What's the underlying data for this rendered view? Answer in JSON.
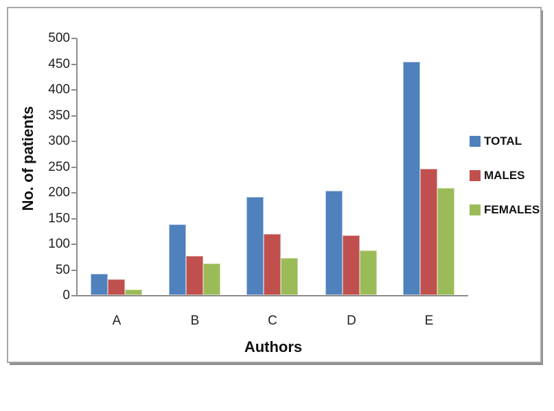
{
  "chart_data": {
    "type": "bar",
    "categories": [
      "A",
      "B",
      "C",
      "D",
      "E"
    ],
    "series": [
      {
        "name": "TOTAL",
        "color": "#4F81BD",
        "border_color": "#AEC4E0",
        "values": [
          41,
          137,
          190,
          202,
          453
        ]
      },
      {
        "name": "MALES",
        "color": "#C0504D",
        "border_color": "#DBA5A4",
        "values": [
          30,
          76,
          118,
          116,
          245
        ]
      },
      {
        "name": "FEMALES",
        "color": "#9BBB59",
        "border_color": "#C9DCA2",
        "values": [
          11,
          61,
          72,
          86,
          208
        ]
      }
    ],
    "xlabel": "Authors",
    "ylabel": "No. of patients",
    "ylim": [
      0,
      500
    ],
    "ytick_step": 50,
    "ytick_labels": [
      "0",
      "50",
      "100",
      "150",
      "200",
      "250",
      "300",
      "350",
      "400",
      "450",
      "500"
    ],
    "grid": false,
    "legend_position": "right",
    "legend_entries": [
      "TOTAL",
      "MALES",
      "FEMALES"
    ],
    "axis_color": "#8C8C8C",
    "text_color": "#1F1F1F"
  }
}
